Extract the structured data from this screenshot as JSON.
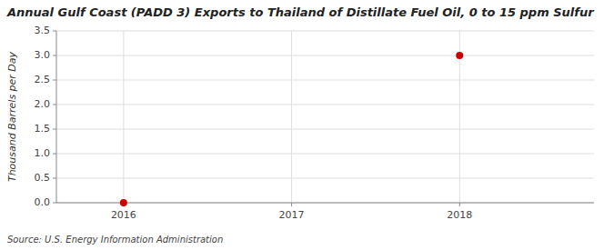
{
  "chart_data": {
    "type": "scatter",
    "title": "Annual Gulf Coast (PADD 3) Exports to Thailand of Distillate Fuel Oil, 0 to 15 ppm Sulfur",
    "ylabel": "Thousand Barrels per Day",
    "source": "Source: U.S. Energy Information Administration",
    "x": [
      2016,
      2018
    ],
    "values": [
      0.0,
      3.0
    ],
    "color": "#cc0000",
    "marker": "circle",
    "xlim": [
      2015.6,
      2018.8
    ],
    "ylim": [
      0.0,
      3.5
    ],
    "xticks": [
      2016,
      2017,
      2018
    ],
    "yticks": [
      {
        "value": 0.0,
        "label": "0.0"
      },
      0.5,
      {
        "value": 1.0,
        "label": "1.0"
      },
      1.5,
      {
        "value": 2.0,
        "label": "2.0"
      },
      2.5,
      {
        "value": 3.0,
        "label": "3.0"
      },
      3.5
    ],
    "grid": true
  }
}
